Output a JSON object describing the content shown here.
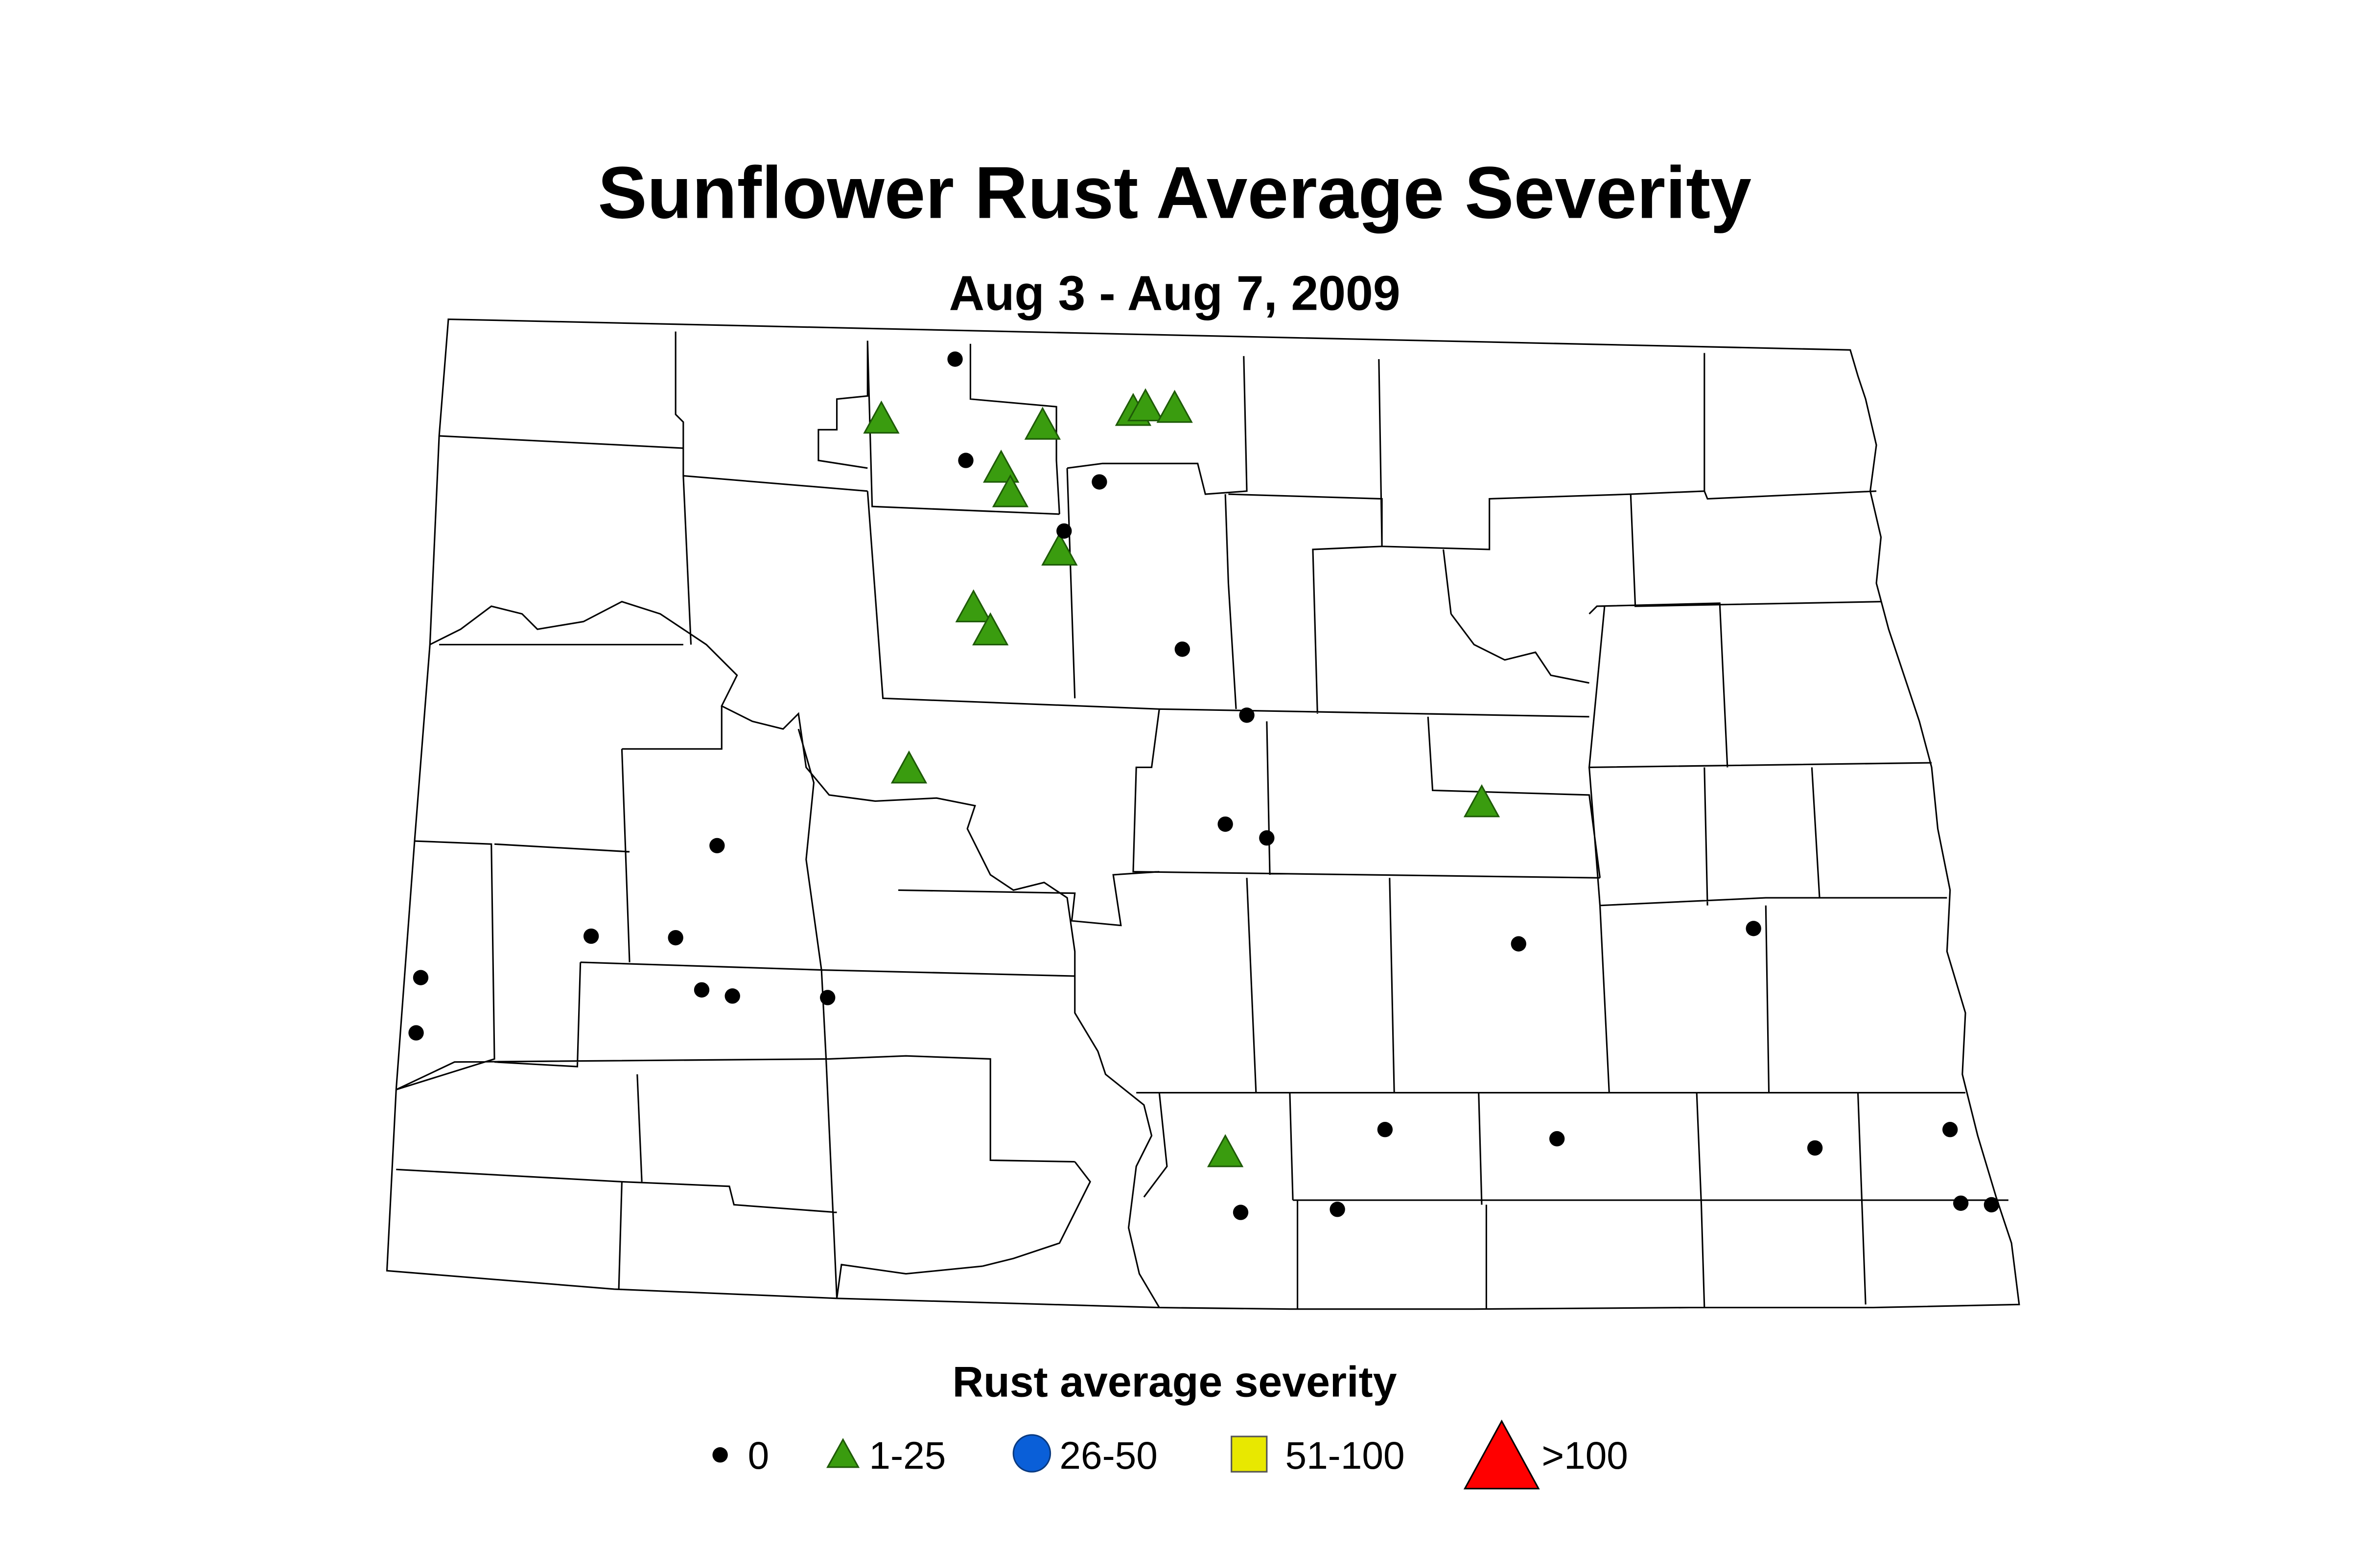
{
  "title": "Sunflower Rust Average Severity",
  "subtitle": "Aug 3 - Aug 7, 2009",
  "legend": {
    "title": "Rust average severity",
    "items": [
      "0",
      "1-25",
      "26-50",
      "51-100",
      ">100"
    ]
  }
}
